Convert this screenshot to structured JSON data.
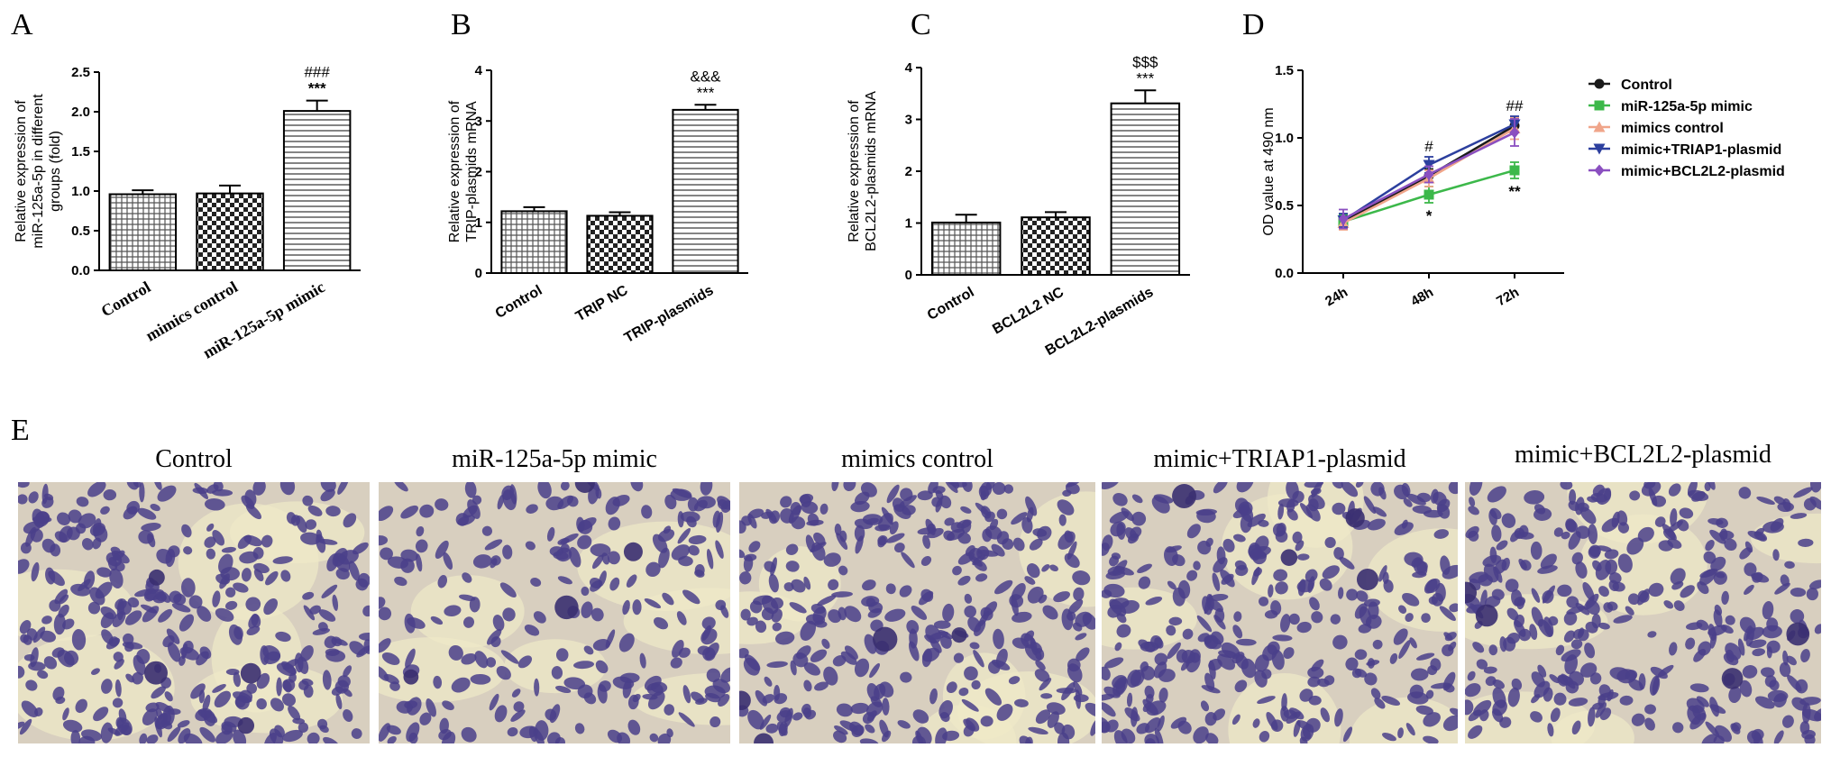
{
  "panel_labels": [
    "A",
    "B",
    "C",
    "D",
    "E"
  ],
  "chart_data": [
    {
      "panel": "A",
      "type": "bar",
      "ylabel": "Relative expression of miR-125a-5p in different groups (fold)",
      "ylim": [
        0,
        2.5
      ],
      "yticks": [
        "0.0",
        "0.5",
        "1.0",
        "1.5",
        "2.0",
        "2.5"
      ],
      "categories": [
        "Control",
        "mimics control",
        "miR-125a-5p mimic"
      ],
      "values": [
        0.96,
        0.97,
        2.01
      ],
      "errors": [
        0.05,
        0.1,
        0.13
      ],
      "patterns": [
        "grid",
        "checker",
        "hlines"
      ],
      "annotations": [
        {
          "index": 2,
          "lines": [
            "###",
            "***"
          ]
        }
      ]
    },
    {
      "panel": "B",
      "type": "bar",
      "ylabel": "Relative expression of TRIP-plasmids mRNA",
      "ylim": [
        0,
        4
      ],
      "yticks": [
        "0",
        "1",
        "2",
        "3",
        "4"
      ],
      "categories": [
        "Control",
        "TRIP NC",
        "TRIP-plasmids"
      ],
      "values": [
        1.22,
        1.13,
        3.22
      ],
      "errors": [
        0.08,
        0.07,
        0.1
      ],
      "patterns": [
        "grid",
        "checker",
        "hlines"
      ],
      "annotations": [
        {
          "index": 2,
          "lines": [
            "&&&",
            "***"
          ]
        }
      ]
    },
    {
      "panel": "C",
      "type": "bar",
      "ylabel": "Relative expression of BCL2L2-plasmids mRNA",
      "ylim": [
        0,
        4
      ],
      "yticks": [
        "0",
        "1",
        "2",
        "3",
        "4"
      ],
      "categories": [
        "Control",
        "BCL2L2 NC",
        "BCL2L2-plasmids"
      ],
      "values": [
        1.01,
        1.11,
        3.31
      ],
      "errors": [
        0.15,
        0.1,
        0.25
      ],
      "patterns": [
        "grid",
        "checker",
        "hlines"
      ],
      "annotations": [
        {
          "index": 2,
          "lines": [
            "$$$",
            "***"
          ]
        }
      ]
    },
    {
      "panel": "D",
      "type": "line",
      "ylabel": "OD value at 490 nm",
      "ylim": [
        0,
        1.5
      ],
      "yticks": [
        "0.0",
        "0.5",
        "1.0",
        "1.5"
      ],
      "x": [
        "24h",
        "48h",
        "72h"
      ],
      "series": [
        {
          "name": "Control",
          "color": "#1a1a1a",
          "marker": "circle",
          "values": [
            0.38,
            0.72,
            1.09
          ],
          "errors": [
            0.05,
            0.05,
            0.05
          ]
        },
        {
          "name": "miR-125a-5p mimic",
          "color": "#3cb84a",
          "marker": "square",
          "values": [
            0.38,
            0.58,
            0.76
          ],
          "errors": [
            0.05,
            0.06,
            0.06
          ]
        },
        {
          "name": "mimics control",
          "color": "#f0a58a",
          "marker": "triangle-up",
          "values": [
            0.37,
            0.7,
            1.07
          ],
          "errors": [
            0.05,
            0.06,
            0.08
          ]
        },
        {
          "name": "mimic+TRIAP1-plasmid",
          "color": "#2c3f9e",
          "marker": "triangle-down",
          "values": [
            0.39,
            0.8,
            1.1
          ],
          "errors": [
            0.05,
            0.06,
            0.06
          ]
        },
        {
          "name": "mimic+BCL2L2-plasmid",
          "color": "#8a4fc0",
          "marker": "diamond",
          "values": [
            0.4,
            0.73,
            1.04
          ],
          "errors": [
            0.07,
            0.06,
            0.1
          ]
        }
      ],
      "annotations": [
        {
          "x_index": 1,
          "text": "#",
          "position": "above"
        },
        {
          "x_index": 1,
          "text": "*",
          "position": "below"
        },
        {
          "x_index": 2,
          "text": "##",
          "position": "above"
        },
        {
          "x_index": 2,
          "text": "**",
          "position": "below"
        }
      ]
    }
  ],
  "micrographs": {
    "description_color": "#4a3f8a",
    "panels": [
      {
        "title": "Control"
      },
      {
        "title": "miR-125a-5p mimic"
      },
      {
        "title": "mimics control"
      },
      {
        "title": "mimic+TRIAP1-plasmid"
      },
      {
        "title": "mimic+BCL2L2-plasmid"
      }
    ]
  }
}
